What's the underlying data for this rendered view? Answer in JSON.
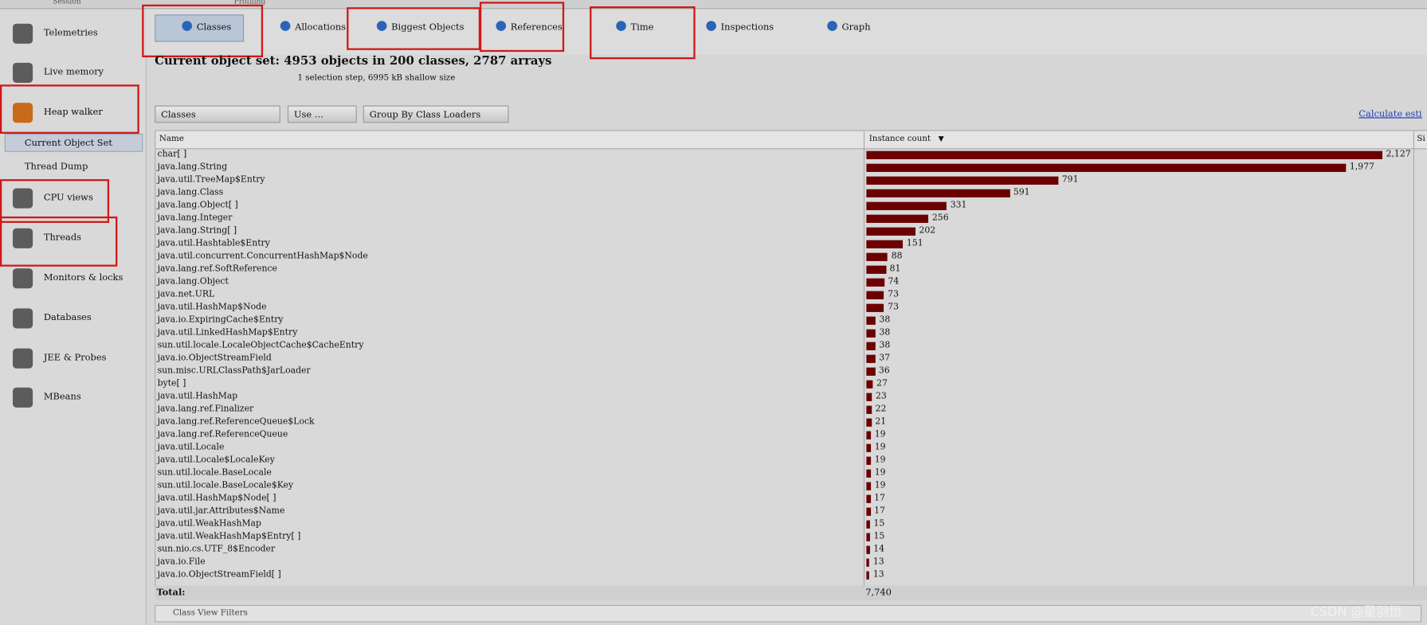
{
  "top_tabs": [
    "Session",
    "Profiling"
  ],
  "sidebar": [
    "Telemetries",
    "Live memory",
    "Heap walker",
    "Current Object Set",
    "Thread Dump",
    "CPU views",
    "Threads",
    "Monitors & locks",
    "Databases",
    "JEE & Probes",
    "MBeans"
  ],
  "view_tabs": [
    "Classes",
    "Allocations",
    "Biggest Objects",
    "References",
    "Time",
    "Inspections",
    "Graph"
  ],
  "header": {
    "title": "Current object set: 4953 objects in 200 classes, 2787 arrays",
    "subtitle": "1 selection step, 6995 kB shallow size"
  },
  "toolbar": {
    "dropdown": "Classes",
    "use": "Use ...",
    "group": "Group By Class Loaders",
    "link": "Calculate esti"
  },
  "table": {
    "columns": [
      "Name",
      "Instance count",
      "Si"
    ],
    "names": [
      "char[ ]",
      "java.lang.String",
      "java.util.TreeMap$Entry",
      "java.lang.Class",
      "java.lang.Object[ ]",
      "java.lang.Integer",
      "java.lang.String[ ]",
      "java.util.Hashtable$Entry",
      "java.util.concurrent.ConcurrentHashMap$Node",
      "java.lang.ref.SoftReference",
      "java.lang.Object",
      "java.net.URL",
      "java.util.HashMap$Node",
      "java.io.ExpiringCache$Entry",
      "java.util.LinkedHashMap$Entry",
      "sun.util.locale.LocaleObjectCache$CacheEntry",
      "java.io.ObjectStreamField",
      "sun.misc.URLClassPath$JarLoader",
      "byte[ ]",
      "java.util.HashMap",
      "java.lang.ref.Finalizer",
      "java.lang.ref.ReferenceQueue$Lock",
      "java.lang.ref.ReferenceQueue",
      "java.util.Locale",
      "java.util.Locale$LocaleKey",
      "sun.util.locale.BaseLocale",
      "sun.util.locale.BaseLocale$Key",
      "java.util.HashMap$Node[ ]",
      "java.util.jar.Attributes$Name",
      "java.util.WeakHashMap",
      "java.util.WeakHashMap$Entry[ ]",
      "sun.nio.cs.UTF_8$Encoder",
      "java.io.File",
      "java.io.ObjectStreamField[ ]"
    ],
    "counts": [
      2127,
      1977,
      791,
      591,
      331,
      256,
      202,
      151,
      88,
      81,
      74,
      73,
      73,
      38,
      38,
      38,
      37,
      36,
      27,
      23,
      22,
      21,
      19,
      19,
      19,
      19,
      19,
      17,
      17,
      15,
      15,
      14,
      13,
      13
    ],
    "count_labels": [
      "2,127",
      "1,977",
      "791",
      "591",
      "331",
      "256",
      "202",
      "151",
      "88",
      "81",
      "74",
      "73",
      "73",
      "38",
      "38",
      "38",
      "37",
      "36",
      "27",
      "23",
      "22",
      "21",
      "19",
      "19",
      "19",
      "19",
      "19",
      "17",
      "17",
      "15",
      "15",
      "14",
      "13",
      "13"
    ],
    "total_label": "Total:",
    "total": "7,740"
  },
  "filter": "Class View Filters",
  "watermark": "CSDN @星羽恒"
}
